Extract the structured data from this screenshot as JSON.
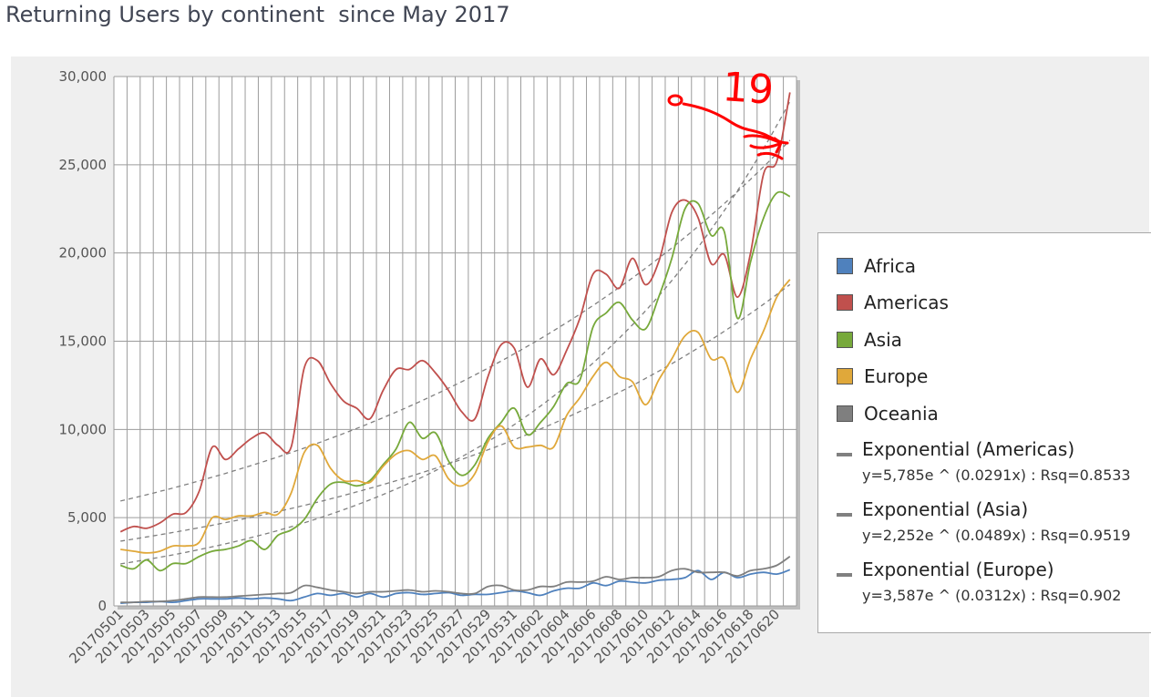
{
  "page": {
    "title": "Returning Users by continent  since May 2017"
  },
  "chart_data": {
    "type": "line",
    "title": "Returning Users by continent  since May 2017",
    "xlabel": "",
    "ylabel": "",
    "ylim": [
      0,
      30000
    ],
    "yticks": [
      0,
      5000,
      10000,
      15000,
      20000,
      25000,
      30000
    ],
    "ytick_labels": [
      "0",
      "5,000",
      "10,000",
      "15,000",
      "20,000",
      "25,000",
      "30,000"
    ],
    "grid": true,
    "legend_position": "right",
    "categories": [
      "20170501",
      "20170502",
      "20170503",
      "20170504",
      "20170505",
      "20170506",
      "20170507",
      "20170508",
      "20170509",
      "20170510",
      "20170511",
      "20170512",
      "20170513",
      "20170514",
      "20170515",
      "20170516",
      "20170517",
      "20170518",
      "20170519",
      "20170520",
      "20170521",
      "20170522",
      "20170523",
      "20170524",
      "20170525",
      "20170526",
      "20170527",
      "20170528",
      "20170529",
      "20170530",
      "20170531",
      "20170601",
      "20170602",
      "20170603",
      "20170604",
      "20170605",
      "20170606",
      "20170607",
      "20170608",
      "20170609",
      "20170610",
      "20170611",
      "20170612",
      "20170613",
      "20170614",
      "20170615",
      "20170616",
      "20170617",
      "20170618",
      "20170619",
      "20170620",
      "20170621"
    ],
    "x_tick_labels": [
      "20170501",
      "20170503",
      "20170505",
      "20170507",
      "20170509",
      "20170511",
      "20170513",
      "20170515",
      "20170517",
      "20170519",
      "20170521",
      "20170523",
      "20170525",
      "20170527",
      "20170529",
      "20170531",
      "20170602",
      "20170604",
      "20170606",
      "20170608",
      "20170610",
      "20170612",
      "20170614",
      "20170616",
      "20170618",
      "20170620"
    ],
    "series": [
      {
        "name": "Africa",
        "color": "#4f81bd",
        "values": [
          150,
          200,
          200,
          250,
          200,
          300,
          400,
          400,
          400,
          450,
          400,
          450,
          400,
          300,
          500,
          700,
          600,
          700,
          500,
          700,
          500,
          700,
          750,
          650,
          700,
          750,
          600,
          650,
          650,
          750,
          850,
          750,
          600,
          850,
          1000,
          1000,
          1300,
          1150,
          1400,
          1350,
          1300,
          1450,
          1500,
          1600,
          2000,
          1500,
          1900,
          1600,
          1800,
          1900,
          1800,
          2050
        ]
      },
      {
        "name": "Americas",
        "color": "#c0504d",
        "values": [
          4200,
          4500,
          4400,
          4700,
          5200,
          5300,
          6500,
          9000,
          8300,
          8900,
          9500,
          9800,
          9100,
          9000,
          13500,
          13900,
          12600,
          11600,
          11200,
          10600,
          12200,
          13400,
          13400,
          13900,
          13200,
          12200,
          11000,
          10600,
          13000,
          14800,
          14600,
          12400,
          14000,
          13100,
          14500,
          16300,
          18800,
          18800,
          18000,
          19700,
          18200,
          19500,
          22300,
          23000,
          22000,
          19400,
          19900,
          17500,
          20000,
          24500,
          25200,
          29100
        ]
      },
      {
        "name": "Asia",
        "color": "#77a93b",
        "values": [
          2300,
          2100,
          2600,
          2000,
          2400,
          2400,
          2800,
          3100,
          3200,
          3400,
          3700,
          3200,
          4000,
          4300,
          4900,
          6100,
          6900,
          7000,
          6800,
          7100,
          8000,
          8900,
          10400,
          9500,
          9800,
          8200,
          7400,
          8000,
          9500,
          10400,
          11200,
          9700,
          10400,
          11300,
          12600,
          12800,
          15800,
          16600,
          17200,
          16200,
          15700,
          17500,
          19700,
          22500,
          22800,
          21000,
          21200,
          16300,
          19500,
          22000,
          23400,
          23200
        ]
      },
      {
        "name": "Europe",
        "color": "#e0a83a",
        "values": [
          3200,
          3100,
          3000,
          3100,
          3400,
          3400,
          3600,
          5000,
          4900,
          5100,
          5100,
          5300,
          5200,
          6400,
          8700,
          9100,
          7800,
          7100,
          7100,
          7000,
          7900,
          8600,
          8800,
          8300,
          8500,
          7200,
          6800,
          7500,
          9300,
          10200,
          9000,
          9000,
          9100,
          9000,
          10800,
          11800,
          13000,
          13800,
          13000,
          12700,
          11400,
          12800,
          14000,
          15300,
          15500,
          14000,
          14000,
          12100,
          14000,
          15600,
          17500,
          18500
        ]
      },
      {
        "name": "Oceania",
        "color": "#7f7f7f",
        "values": [
          200,
          200,
          250,
          250,
          300,
          400,
          500,
          500,
          500,
          550,
          600,
          650,
          700,
          750,
          1150,
          1050,
          900,
          800,
          700,
          800,
          800,
          850,
          900,
          800,
          850,
          800,
          700,
          700,
          1100,
          1150,
          900,
          900,
          1100,
          1100,
          1350,
          1350,
          1400,
          1650,
          1500,
          1600,
          1600,
          1650,
          2000,
          2100,
          1900,
          1900,
          1900,
          1700,
          2000,
          2100,
          2300,
          2800
        ]
      },
      {
        "name": "Exponential (Americas)",
        "color": "#808080",
        "trendline": true,
        "equation": "y=5,785e ^ (0.0291x) : Rsq=0.8533"
      },
      {
        "name": "Exponential (Asia)",
        "color": "#808080",
        "trendline": true,
        "equation": "y=2,252e ^ (0.0489x) : Rsq=0.9519"
      },
      {
        "name": "Exponential (Europe)",
        "color": "#808080",
        "trendline": true,
        "equation": "y=3,587e ^ (0.0312x) : Rsq=0.902"
      }
    ],
    "annotation": {
      "type": "handwritten",
      "color": "#ff0000",
      "text": "19"
    }
  }
}
